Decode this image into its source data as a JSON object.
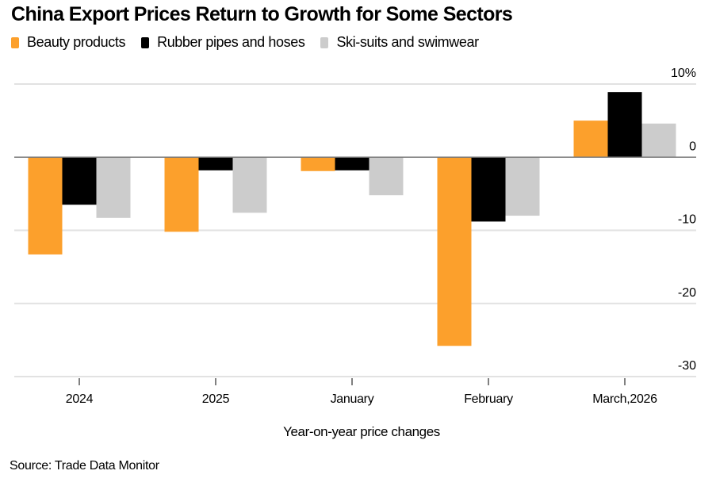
{
  "chart_data": {
    "type": "bar",
    "title": "China Export Prices Return to Growth for Some Sectors",
    "xlabel": "Year-on-year price changes",
    "ylabel": "",
    "categories": [
      "2024",
      "2025",
      "January",
      "February",
      "March,2026"
    ],
    "series": [
      {
        "name": "Beauty products",
        "color": "#fca02c",
        "values": [
          -13.3,
          -10.2,
          -1.9,
          -25.8,
          5.0
        ]
      },
      {
        "name": "Rubber pipes and hoses",
        "color": "#000000",
        "values": [
          -6.5,
          -1.8,
          -1.8,
          -8.8,
          8.9
        ]
      },
      {
        "name": "Ski-suits and swimwear",
        "color": "#cccccc",
        "values": [
          -8.3,
          -7.6,
          -5.2,
          -8.0,
          4.6
        ]
      }
    ],
    "ylim": [
      -30,
      10
    ],
    "yticks": [
      10,
      0,
      -10,
      -20,
      -30
    ],
    "ytick_labels": [
      "10%",
      "0",
      "-10",
      "-20",
      "-30"
    ],
    "y_axis_side": "right",
    "grid": true,
    "legend_position": "top-left",
    "source": "Source: Trade Data Monitor"
  }
}
